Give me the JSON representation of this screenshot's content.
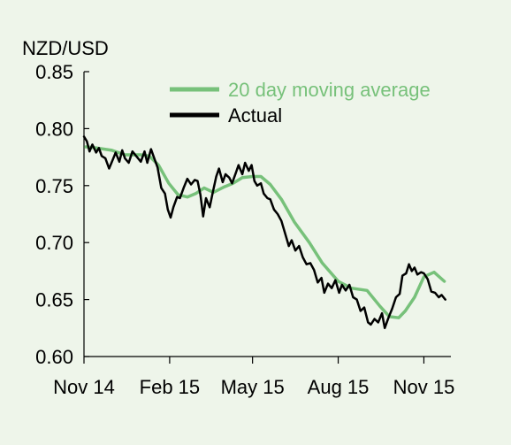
{
  "chart_data": {
    "type": "line",
    "title": "",
    "ylabel": "NZD/USD",
    "xlabel": "",
    "ylim": [
      0.6,
      0.85
    ],
    "yticks": [
      "0.85",
      "0.80",
      "0.75",
      "0.70",
      "0.65",
      "0.60"
    ],
    "xticks": [
      "Nov 14",
      "Feb 15",
      "May 15",
      "Aug 15",
      "Nov 15"
    ],
    "xrange": [
      "2014-11-01",
      "2015-11-30"
    ],
    "grid": false,
    "legend_position": "top-right",
    "series": [
      {
        "name": "20 day moving average",
        "color": "#77c17a",
        "points": [
          [
            "2014-11-03",
            0.784
          ],
          [
            "2014-11-15",
            0.783
          ],
          [
            "2014-12-01",
            0.781
          ],
          [
            "2014-12-15",
            0.777
          ],
          [
            "2015-01-01",
            0.777
          ],
          [
            "2015-01-10",
            0.776
          ],
          [
            "2015-01-20",
            0.768
          ],
          [
            "2015-01-31",
            0.752
          ],
          [
            "2015-02-10",
            0.742
          ],
          [
            "2015-02-20",
            0.74
          ],
          [
            "2015-03-01",
            0.743
          ],
          [
            "2015-03-10",
            0.748
          ],
          [
            "2015-03-20",
            0.744
          ],
          [
            "2015-04-01",
            0.749
          ],
          [
            "2015-04-10",
            0.752
          ],
          [
            "2015-04-20",
            0.757
          ],
          [
            "2015-05-01",
            0.758
          ],
          [
            "2015-05-10",
            0.758
          ],
          [
            "2015-05-20",
            0.751
          ],
          [
            "2015-06-01",
            0.738
          ],
          [
            "2015-06-15",
            0.718
          ],
          [
            "2015-07-01",
            0.7
          ],
          [
            "2015-07-15",
            0.682
          ],
          [
            "2015-08-01",
            0.666
          ],
          [
            "2015-08-15",
            0.66
          ],
          [
            "2015-09-01",
            0.658
          ],
          [
            "2015-09-15",
            0.644
          ],
          [
            "2015-09-25",
            0.635
          ],
          [
            "2015-10-05",
            0.634
          ],
          [
            "2015-10-12",
            0.64
          ],
          [
            "2015-10-22",
            0.652
          ],
          [
            "2015-11-01",
            0.67
          ],
          [
            "2015-11-12",
            0.674
          ],
          [
            "2015-11-23",
            0.666
          ]
        ]
      },
      {
        "name": "Actual",
        "color": "#000000",
        "points": [
          [
            "2014-11-01",
            0.793
          ],
          [
            "2014-11-04",
            0.789
          ],
          [
            "2014-11-07",
            0.78
          ],
          [
            "2014-11-10",
            0.786
          ],
          [
            "2014-11-14",
            0.779
          ],
          [
            "2014-11-17",
            0.783
          ],
          [
            "2014-11-20",
            0.776
          ],
          [
            "2014-11-24",
            0.774
          ],
          [
            "2014-11-28",
            0.765
          ],
          [
            "2014-12-02",
            0.773
          ],
          [
            "2014-12-05",
            0.779
          ],
          [
            "2014-12-09",
            0.771
          ],
          [
            "2014-12-12",
            0.781
          ],
          [
            "2014-12-15",
            0.774
          ],
          [
            "2014-12-19",
            0.77
          ],
          [
            "2014-12-23",
            0.78
          ],
          [
            "2014-12-27",
            0.776
          ],
          [
            "2015-01-01",
            0.771
          ],
          [
            "2015-01-05",
            0.78
          ],
          [
            "2015-01-08",
            0.77
          ],
          [
            "2015-01-12",
            0.782
          ],
          [
            "2015-01-15",
            0.775
          ],
          [
            "2015-01-19",
            0.766
          ],
          [
            "2015-01-23",
            0.748
          ],
          [
            "2015-01-27",
            0.743
          ],
          [
            "2015-01-30",
            0.729
          ],
          [
            "2015-02-02",
            0.722
          ],
          [
            "2015-02-05",
            0.731
          ],
          [
            "2015-02-09",
            0.74
          ],
          [
            "2015-02-12",
            0.739
          ],
          [
            "2015-02-16",
            0.748
          ],
          [
            "2015-02-20",
            0.756
          ],
          [
            "2015-02-24",
            0.751
          ],
          [
            "2015-02-28",
            0.755
          ],
          [
            "2015-03-03",
            0.754
          ],
          [
            "2015-03-06",
            0.742
          ],
          [
            "2015-03-09",
            0.723
          ],
          [
            "2015-03-12",
            0.739
          ],
          [
            "2015-03-16",
            0.731
          ],
          [
            "2015-03-19",
            0.743
          ],
          [
            "2015-03-23",
            0.758
          ],
          [
            "2015-03-26",
            0.765
          ],
          [
            "2015-03-30",
            0.753
          ],
          [
            "2015-04-02",
            0.76
          ],
          [
            "2015-04-06",
            0.757
          ],
          [
            "2015-04-09",
            0.752
          ],
          [
            "2015-04-13",
            0.761
          ],
          [
            "2015-04-16",
            0.768
          ],
          [
            "2015-04-20",
            0.76
          ],
          [
            "2015-04-23",
            0.77
          ],
          [
            "2015-04-27",
            0.763
          ],
          [
            "2015-04-30",
            0.768
          ],
          [
            "2015-05-03",
            0.754
          ],
          [
            "2015-05-06",
            0.75
          ],
          [
            "2015-05-10",
            0.752
          ],
          [
            "2015-05-13",
            0.743
          ],
          [
            "2015-05-17",
            0.739
          ],
          [
            "2015-05-20",
            0.738
          ],
          [
            "2015-05-24",
            0.729
          ],
          [
            "2015-05-28",
            0.725
          ],
          [
            "2015-06-01",
            0.719
          ],
          [
            "2015-06-05",
            0.708
          ],
          [
            "2015-06-09",
            0.697
          ],
          [
            "2015-06-12",
            0.702
          ],
          [
            "2015-06-16",
            0.693
          ],
          [
            "2015-06-20",
            0.697
          ],
          [
            "2015-06-24",
            0.687
          ],
          [
            "2015-06-28",
            0.681
          ],
          [
            "2015-07-02",
            0.682
          ],
          [
            "2015-07-06",
            0.676
          ],
          [
            "2015-07-10",
            0.665
          ],
          [
            "2015-07-14",
            0.669
          ],
          [
            "2015-07-17",
            0.656
          ],
          [
            "2015-07-21",
            0.664
          ],
          [
            "2015-07-25",
            0.66
          ],
          [
            "2015-07-29",
            0.667
          ],
          [
            "2015-08-02",
            0.656
          ],
          [
            "2015-08-05",
            0.663
          ],
          [
            "2015-08-09",
            0.658
          ],
          [
            "2015-08-13",
            0.663
          ],
          [
            "2015-08-17",
            0.652
          ],
          [
            "2015-08-21",
            0.65
          ],
          [
            "2015-08-25",
            0.64
          ],
          [
            "2015-08-29",
            0.643
          ],
          [
            "2015-09-02",
            0.63
          ],
          [
            "2015-09-05",
            0.628
          ],
          [
            "2015-09-09",
            0.633
          ],
          [
            "2015-09-13",
            0.63
          ],
          [
            "2015-09-17",
            0.638
          ],
          [
            "2015-09-20",
            0.625
          ],
          [
            "2015-09-24",
            0.634
          ],
          [
            "2015-09-28",
            0.642
          ],
          [
            "2015-10-02",
            0.652
          ],
          [
            "2015-10-06",
            0.655
          ],
          [
            "2015-10-09",
            0.671
          ],
          [
            "2015-10-13",
            0.673
          ],
          [
            "2015-10-16",
            0.681
          ],
          [
            "2015-10-19",
            0.675
          ],
          [
            "2015-10-22",
            0.678
          ],
          [
            "2015-10-25",
            0.672
          ],
          [
            "2015-10-29",
            0.674
          ],
          [
            "2015-11-01",
            0.673
          ],
          [
            "2015-11-05",
            0.668
          ],
          [
            "2015-11-09",
            0.657
          ],
          [
            "2015-11-13",
            0.656
          ],
          [
            "2015-11-17",
            0.652
          ],
          [
            "2015-11-20",
            0.654
          ],
          [
            "2015-11-24",
            0.65
          ]
        ]
      }
    ]
  }
}
